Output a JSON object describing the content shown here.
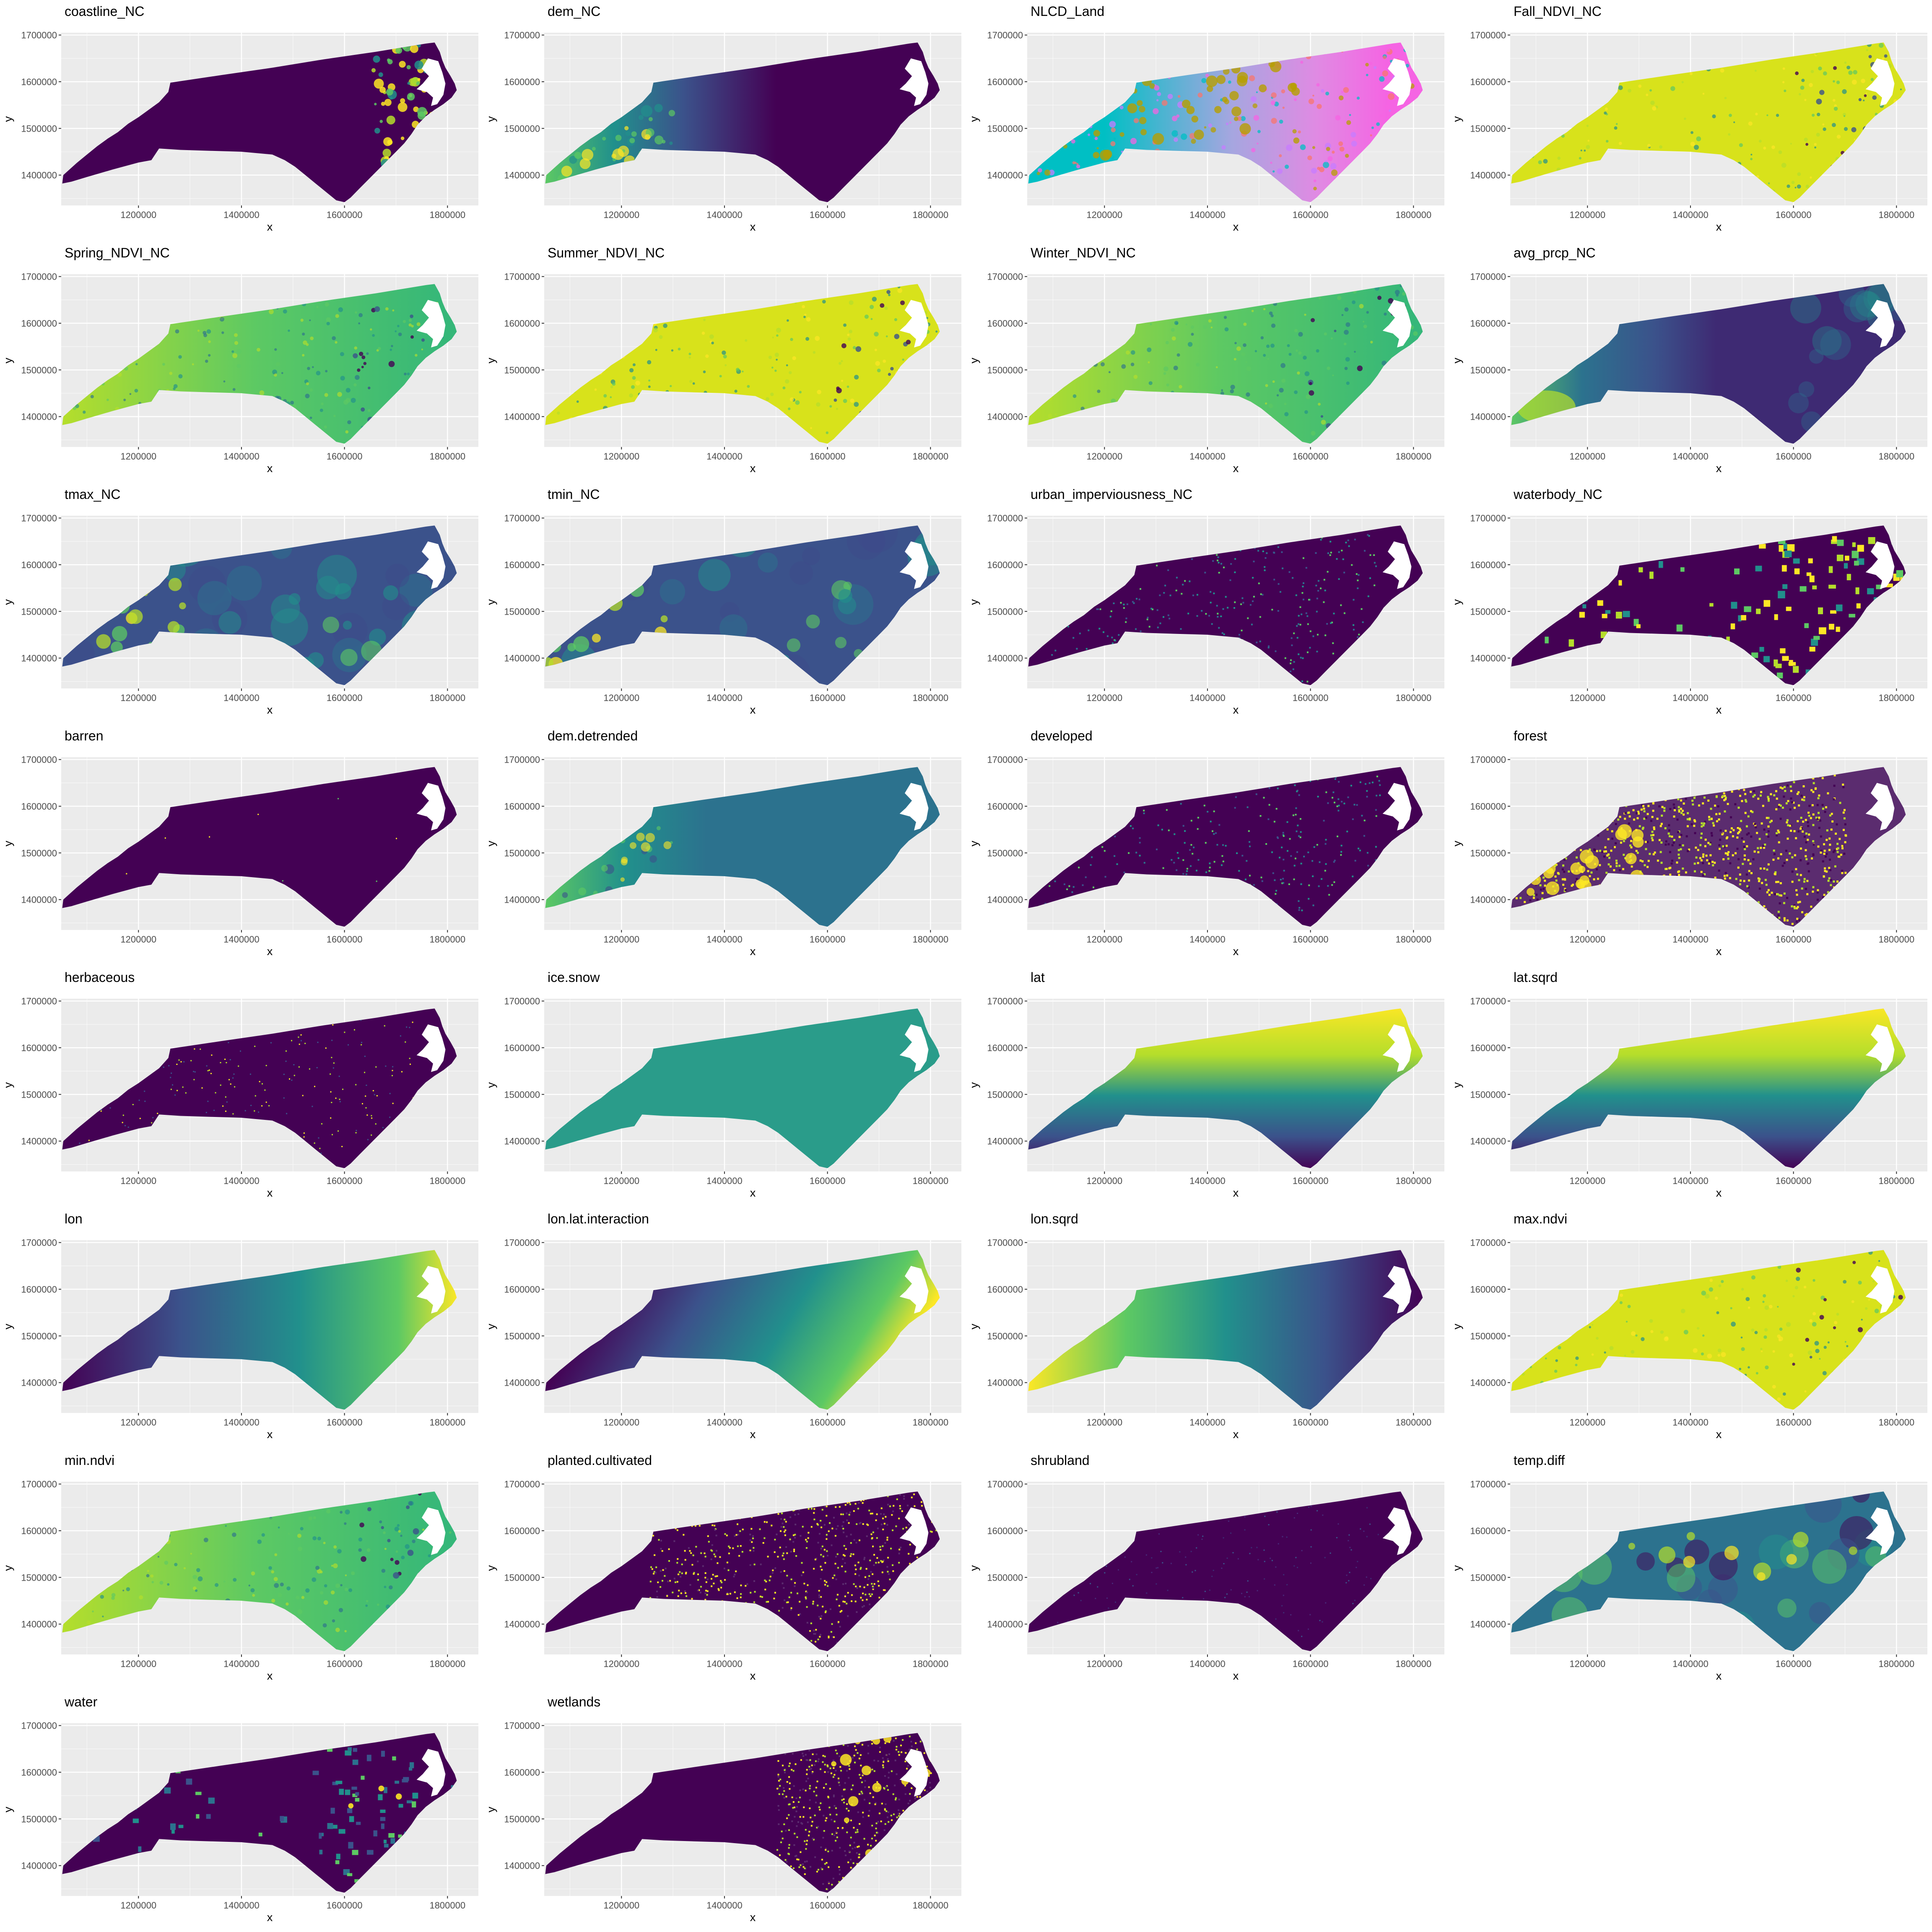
{
  "chart_data": {
    "type": "heatmap",
    "layout": "faceted raster maps",
    "columns": 4,
    "xlabel": "x",
    "ylabel": "y",
    "x_ticks": [
      1200000,
      1400000,
      1600000,
      1800000
    ],
    "y_ticks": [
      1400000,
      1500000,
      1600000,
      1700000
    ],
    "xlim": [
      1050000,
      1860000
    ],
    "ylim": [
      1335000,
      1705000
    ],
    "grid": true,
    "panel_background": "#ebebeb",
    "gridline_color": "#ffffff",
    "viridis": [
      "#440154",
      "#3b528b",
      "#21908c",
      "#5dc963",
      "#fde725"
    ],
    "nlcd_palette": [
      "#00bfc4",
      "#c77cff",
      "#f8766d",
      "#b79f00",
      "#f564e3"
    ],
    "panels": [
      {
        "title": "coastline_NC",
        "pattern": "coast"
      },
      {
        "title": "dem_NC",
        "pattern": "dem"
      },
      {
        "title": "NLCD_Land",
        "pattern": "nlcd"
      },
      {
        "title": "Fall_NDVI_NC",
        "pattern": "ndvi_high"
      },
      {
        "title": "Spring_NDVI_NC",
        "pattern": "ndvi_mid"
      },
      {
        "title": "Summer_NDVI_NC",
        "pattern": "ndvi_high"
      },
      {
        "title": "Winter_NDVI_NC",
        "pattern": "ndvi_mid"
      },
      {
        "title": "avg_prcp_NC",
        "pattern": "prcp"
      },
      {
        "title": "tmax_NC",
        "pattern": "temp"
      },
      {
        "title": "tmin_NC",
        "pattern": "temp"
      },
      {
        "title": "urban_imperviousness_NC",
        "pattern": "sparse_mid"
      },
      {
        "title": "waterbody_NC",
        "pattern": "waterbody"
      },
      {
        "title": "barren",
        "pattern": "dark"
      },
      {
        "title": "dem.detrended",
        "pattern": "dem_detrended"
      },
      {
        "title": "developed",
        "pattern": "sparse_mid"
      },
      {
        "title": "forest",
        "pattern": "forest"
      },
      {
        "title": "herbaceous",
        "pattern": "sparse_yellow"
      },
      {
        "title": "ice.snow",
        "pattern": "uniform"
      },
      {
        "title": "lat",
        "pattern": "lat"
      },
      {
        "title": "lat.sqrd",
        "pattern": "lat"
      },
      {
        "title": "lon",
        "pattern": "lon"
      },
      {
        "title": "lon.lat.interaction",
        "pattern": "lonlat"
      },
      {
        "title": "lon.sqrd",
        "pattern": "lonsq"
      },
      {
        "title": "max.ndvi",
        "pattern": "ndvi_high"
      },
      {
        "title": "min.ndvi",
        "pattern": "ndvi_mid"
      },
      {
        "title": "planted.cultivated",
        "pattern": "planted"
      },
      {
        "title": "shrubland",
        "pattern": "dark_speckle"
      },
      {
        "title": "temp.diff",
        "pattern": "tempdiff"
      },
      {
        "title": "water",
        "pattern": "water"
      },
      {
        "title": "wetlands",
        "pattern": "wetlands"
      }
    ]
  }
}
